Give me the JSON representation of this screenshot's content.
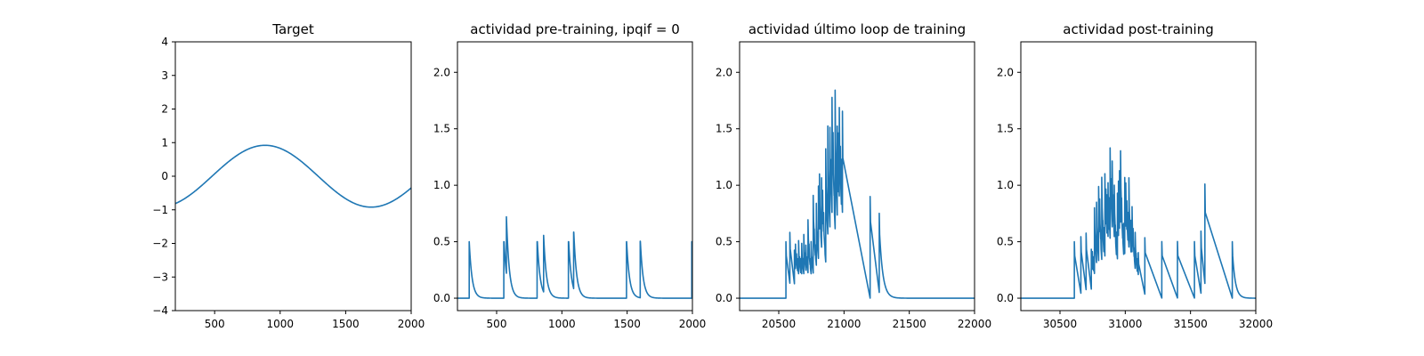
{
  "colors": {
    "line": "#1f77b4",
    "axes": "#000000",
    "background": "#ffffff"
  },
  "chart_data": [
    {
      "type": "line",
      "title": "Target",
      "xlabel": "",
      "ylabel": "",
      "xlim": [
        200,
        2000
      ],
      "ylim": [
        -4,
        4
      ],
      "xticks": [
        500,
        1000,
        1500,
        2000
      ],
      "yticks": [
        -4,
        -3,
        -2,
        -1,
        0,
        1,
        2,
        3,
        4
      ],
      "series": [
        {
          "name": "target",
          "generator": "sine",
          "amplitude": 0.92,
          "period": 1620,
          "peak_x": 885,
          "x_start": 200,
          "x_end": 2000
        }
      ]
    },
    {
      "type": "line",
      "title": "actividad pre-training, ipqif = 0",
      "xlabel": "",
      "ylabel": "",
      "xlim": [
        200,
        2000
      ],
      "ylim": [
        -0.11,
        2.27
      ],
      "xticks": [
        500,
        1000,
        1500,
        2000
      ],
      "yticks": [
        0.0,
        0.5,
        1.0,
        1.5,
        2.0
      ],
      "series": [
        {
          "name": "activity",
          "generator": "spikes",
          "x_start": 200,
          "x_end": 2000,
          "decay": 22,
          "spikes": [
            [
              290,
              0.5
            ],
            [
              555,
              0.5
            ],
            [
              575,
              0.5
            ],
            [
              810,
              0.5
            ],
            [
              860,
              0.5
            ],
            [
              1050,
              0.5
            ],
            [
              1090,
              0.5
            ],
            [
              1495,
              0.5
            ],
            [
              1600,
              0.5
            ],
            [
              1995,
              0.5
            ]
          ]
        }
      ]
    },
    {
      "type": "line",
      "title": "actividad último loop de training",
      "xlabel": "",
      "ylabel": "",
      "xlim": [
        20200,
        22000
      ],
      "ylim": [
        -0.11,
        2.27
      ],
      "xticks": [
        20500,
        21000,
        21500,
        22000
      ],
      "yticks": [
        0.0,
        0.5,
        1.0,
        1.5,
        2.0
      ],
      "series": [
        {
          "name": "activity",
          "generator": "noisy-burst",
          "x_start": 20200,
          "x_end": 22000,
          "burst_start": 20555,
          "burst_end": 22000,
          "dense_start": 20620,
          "dense_end": 20990,
          "dense_step": 8,
          "center": 21050,
          "width": 280,
          "peak": 1.65,
          "noise": 0.35,
          "max": 1.95,
          "seed": 7,
          "spikes": [
            [
              20555,
              0.5
            ],
            [
              20585,
              0.45
            ],
            [
              21200,
              0.9
            ],
            [
              21270,
              0.7
            ]
          ],
          "decay": 26
        }
      ]
    },
    {
      "type": "line",
      "title": "actividad post-training",
      "xlabel": "",
      "ylabel": "",
      "xlim": [
        30200,
        32000
      ],
      "ylim": [
        -0.11,
        2.27
      ],
      "xticks": [
        30500,
        31000,
        31500,
        32000
      ],
      "yticks": [
        0.0,
        0.5,
        1.0,
        1.5,
        2.0
      ],
      "series": [
        {
          "name": "activity",
          "generator": "noisy-burst",
          "x_start": 30200,
          "x_end": 32000,
          "burst_start": 30610,
          "burst_end": 32000,
          "dense_start": 30740,
          "dense_end": 31100,
          "dense_step": 8,
          "center": 30900,
          "width": 200,
          "peak": 1.0,
          "noise": 0.3,
          "max": 1.4,
          "seed": 13,
          "spikes": [
            [
              30610,
              0.5
            ],
            [
              30660,
              0.5
            ],
            [
              30700,
              0.5
            ],
            [
              31150,
              0.5
            ],
            [
              31280,
              0.5
            ],
            [
              31400,
              0.5
            ],
            [
              31530,
              0.5
            ],
            [
              31580,
              0.55
            ],
            [
              31610,
              0.88
            ],
            [
              31820,
              0.5
            ]
          ],
          "decay": 22
        }
      ]
    }
  ]
}
